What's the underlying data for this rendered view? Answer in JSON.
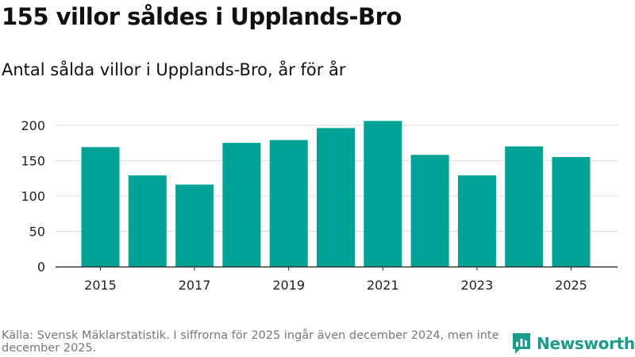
{
  "header": {
    "title": "155 villor såldes i Upplands-Bro",
    "subtitle": "Antal sålda villor i Upplands-Bro, år för år"
  },
  "footer": {
    "source": "Källa: Svensk Mäklarstatistik. I siffrorna för 2025 ingår även december 2024, men inte december 2025.",
    "brand": "Newsworthy"
  },
  "colors": {
    "bar": "#00a296",
    "brand": "#1c9a8b",
    "grid": "#dddddd",
    "axis": "#333333"
  },
  "chart_data": {
    "type": "bar",
    "title": "Antal sålda villor i Upplands-Bro, år för år",
    "categories": [
      "2015",
      "2016",
      "2017",
      "2018",
      "2019",
      "2020",
      "2021",
      "2022",
      "2023",
      "2024",
      "2025"
    ],
    "values": [
      169,
      129,
      116,
      175,
      179,
      196,
      206,
      158,
      129,
      170,
      155
    ],
    "xticks": [
      "2015",
      "2017",
      "2019",
      "2021",
      "2023",
      "2025"
    ],
    "yticks": [
      0,
      50,
      100,
      150,
      200
    ],
    "ylim": [
      0,
      220
    ],
    "xlabel": "",
    "ylabel": "",
    "grid": true,
    "legend": "none"
  }
}
